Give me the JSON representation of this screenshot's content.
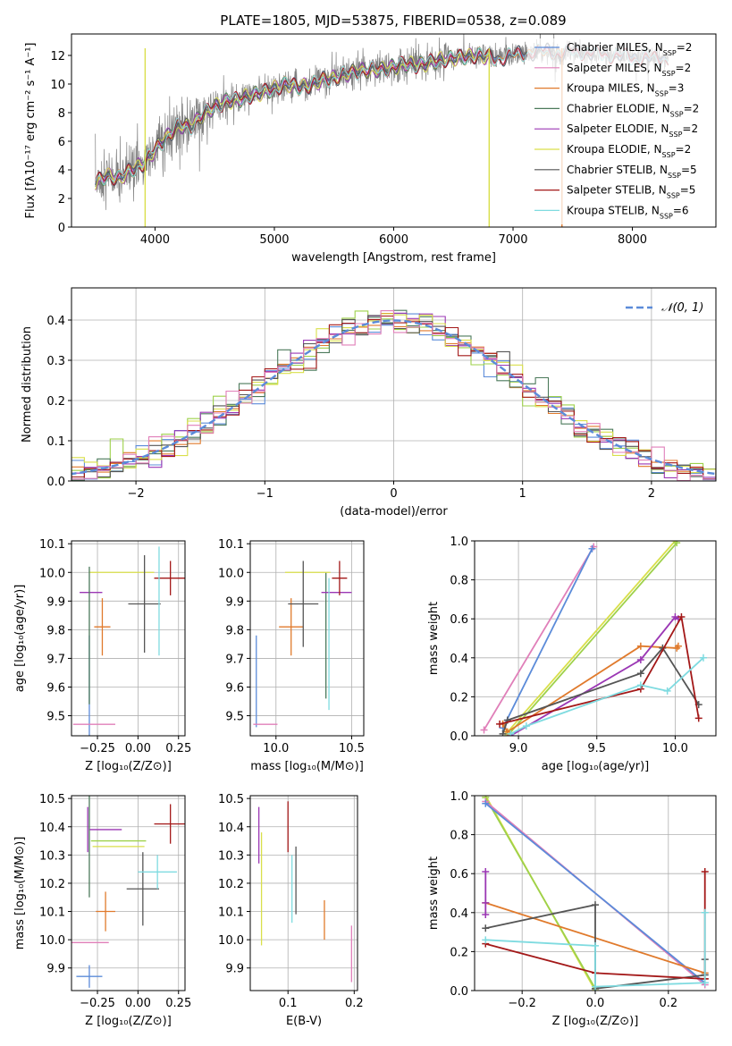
{
  "colors": {
    "c0": "#5b8bd9",
    "c1": "#e07a2c",
    "c2": "#9ed14a",
    "c3": "#4c7a5b",
    "c4": "#9b37b4",
    "c5": "#d9df4a",
    "c6": "#555555",
    "c7": "#a31818",
    "c8": "#7fdbe0",
    "c9": "#e07fb9"
  },
  "chart_data": [
    {
      "type": "line",
      "title": "PLATE=1805, MJD=53875, FIBERID=0538, z=0.089",
      "xlabel": "wavelength [Angstrom, rest frame]",
      "ylabel": "Flux [fλ10⁻¹⁷ erg cm⁻² s⁻¹ A⁻¹]",
      "xlim": [
        3300,
        8700
      ],
      "ylim": [
        0,
        13.5
      ],
      "xticks": [
        4000,
        5000,
        6000,
        7000,
        8000
      ],
      "yticks": [
        0,
        2,
        4,
        6,
        8,
        10,
        12
      ],
      "spectrum_knots": {
        "x": [
          3500,
          3600,
          3700,
          3800,
          3900,
          4000,
          4100,
          4200,
          4300,
          4400,
          4500,
          4600,
          4700,
          4800,
          4900,
          5000,
          5100,
          5200,
          5300,
          5400,
          5500,
          5600,
          5700,
          5800,
          5900,
          6000,
          6100,
          6200,
          6300,
          6400,
          6500,
          6600,
          6700,
          6800,
          6900,
          7000,
          7100,
          7200,
          7300,
          7400,
          7500,
          7600,
          7700,
          7800,
          7900,
          8000,
          8100,
          8200,
          8300,
          8400
        ],
        "y": [
          3.1,
          3.6,
          3.4,
          4.0,
          4.4,
          5.4,
          6.3,
          7.1,
          7.0,
          7.9,
          8.4,
          8.8,
          8.9,
          9.2,
          9.4,
          9.7,
          10.0,
          9.8,
          9.9,
          10.3,
          10.4,
          10.7,
          10.9,
          11.0,
          11.0,
          11.2,
          11.4,
          11.3,
          11.5,
          11.7,
          11.8,
          11.9,
          12.0,
          11.9,
          11.8,
          12.0,
          12.2,
          12.2,
          12.3,
          12.1,
          12.3,
          12.2,
          12.1,
          12.0,
          12.0,
          11.8,
          11.9,
          11.7,
          11.8,
          11.6
        ]
      },
      "series": [
        {
          "name": "Chabrier MILES, N_SSP=2",
          "color_key": "c0",
          "x_end": 8300
        },
        {
          "name": "Salpeter MILES, N_SSP=2",
          "color_key": "c9",
          "x_end": 8300
        },
        {
          "name": "Kroupa MILES, N_SSP=3",
          "color_key": "c1",
          "x_end": 7410
        },
        {
          "name": "Chabrier ELODIE, N_SSP=2",
          "color_key": "c3",
          "x_end": 6800
        },
        {
          "name": "Salpeter ELODIE, N_SSP=2",
          "color_key": "c4",
          "x_end": 6800
        },
        {
          "name": "Kroupa ELODIE, N_SSP=2",
          "color_key": "c5",
          "x_end": 6800
        },
        {
          "name": "Chabrier STELIB, N_SSP=5",
          "color_key": "c6",
          "x_end": 8300
        },
        {
          "name": "Salpeter STELIB, N_SSP=5",
          "color_key": "c7",
          "x_end": 8300
        },
        {
          "name": "Kroupa STELIB, N_SSP=6",
          "color_key": "c8",
          "x_end": 8300
        }
      ]
    },
    {
      "type": "histogram",
      "xlabel": "(data-model)/error",
      "ylabel": "Normed distribution",
      "xlim": [
        -2.5,
        2.5
      ],
      "ylim": [
        0,
        0.48
      ],
      "xticks": [
        -2,
        -1,
        0,
        1,
        2
      ],
      "yticks": [
        0.0,
        0.1,
        0.2,
        0.3,
        0.4
      ],
      "legend": "𝒩(0, 1)",
      "legend_position": "top-right",
      "bin_width": 0.1,
      "n_series": 9,
      "reference_curve": "N(0,1) gaussian, dashed"
    },
    {
      "type": "errorbar",
      "xlabel": "Z [log₁₀(Z/Z⊙)]",
      "ylabel": "age  [log₁₀(age/yr)]",
      "xlim": [
        -0.41,
        0.29
      ],
      "ylim": [
        9.43,
        10.11
      ],
      "xticks": [
        -0.25,
        0.0,
        0.25
      ],
      "xticklabels": [
        "−0.25",
        "0.00",
        "0.25"
      ],
      "yticks": [
        9.5,
        9.6,
        9.7,
        9.8,
        9.9,
        10.0,
        10.1
      ],
      "points": [
        {
          "color_key": "c0",
          "x": -0.3,
          "xerr": 0.0,
          "y": 9.47,
          "yerr": 0.31
        },
        {
          "color_key": "c9",
          "x": -0.27,
          "xerr": 0.13,
          "y": 9.47,
          "yerr": 0.0
        },
        {
          "color_key": "c1",
          "x": -0.22,
          "xerr": 0.05,
          "y": 9.81,
          "yerr": 0.1
        },
        {
          "color_key": "c4",
          "x": -0.29,
          "xerr": 0.07,
          "y": 9.93,
          "yerr": 0.0
        },
        {
          "color_key": "c5",
          "x": -0.1,
          "xerr": 0.2,
          "y": 10.0,
          "yerr": 0.0
        },
        {
          "color_key": "c3",
          "x": -0.3,
          "xerr": 0.0,
          "y": 9.78,
          "yerr": 0.24
        },
        {
          "color_key": "c6",
          "x": 0.04,
          "xerr": 0.1,
          "y": 9.89,
          "yerr": 0.17
        },
        {
          "color_key": "c7",
          "x": 0.2,
          "xerr": 0.1,
          "y": 9.98,
          "yerr": 0.06
        },
        {
          "color_key": "c8",
          "x": 0.13,
          "xerr": 0.0,
          "y": 9.9,
          "yerr": 0.19
        }
      ]
    },
    {
      "type": "errorbar",
      "xlabel": "mass [log₁₀(M/M⊙)]",
      "xlim": [
        9.83,
        10.58
      ],
      "ylim": [
        9.43,
        10.11
      ],
      "xticks": [
        10.0,
        10.5
      ],
      "yticks": [
        9.5,
        9.6,
        9.7,
        9.8,
        9.9,
        10.0,
        10.1
      ],
      "points": [
        {
          "color_key": "c0",
          "x": 9.87,
          "xerr": 0.0,
          "y": 9.62,
          "yerr": 0.16
        },
        {
          "color_key": "c9",
          "x": 9.93,
          "xerr": 0.08,
          "y": 9.47,
          "yerr": 0.0
        },
        {
          "color_key": "c1",
          "x": 10.1,
          "xerr": 0.08,
          "y": 9.81,
          "yerr": 0.1
        },
        {
          "color_key": "c3",
          "x": 10.33,
          "xerr": 0.0,
          "y": 9.78,
          "yerr": 0.22
        },
        {
          "color_key": "c4",
          "x": 10.4,
          "xerr": 0.1,
          "y": 9.93,
          "yerr": 0.0
        },
        {
          "color_key": "c5",
          "x": 10.21,
          "xerr": 0.15,
          "y": 10.0,
          "yerr": 0.0
        },
        {
          "color_key": "c6",
          "x": 10.18,
          "xerr": 0.1,
          "y": 9.89,
          "yerr": 0.15
        },
        {
          "color_key": "c7",
          "x": 10.42,
          "xerr": 0.05,
          "y": 9.98,
          "yerr": 0.06
        },
        {
          "color_key": "c8",
          "x": 10.35,
          "xerr": 0.0,
          "y": 9.75,
          "yerr": 0.23
        }
      ]
    },
    {
      "type": "line",
      "xlabel": "age  [log₁₀(age/yr)]",
      "ylabel": "mass weight",
      "xlim": [
        8.72,
        10.26
      ],
      "ylim": [
        0,
        1.0
      ],
      "xticks": [
        9.0,
        9.5,
        10.0
      ],
      "yticks": [
        0.0,
        0.2,
        0.4,
        0.6,
        0.8,
        1.0
      ],
      "series": [
        {
          "color_key": "c9",
          "x": [
            8.78,
            9.48
          ],
          "y": [
            0.03,
            0.97
          ]
        },
        {
          "color_key": "c0",
          "x": [
            8.9,
            9.47
          ],
          "y": [
            0.04,
            0.96
          ]
        },
        {
          "color_key": "c5",
          "x": [
            8.92,
            10.0
          ],
          "y": [
            0.01,
            1.0
          ]
        },
        {
          "color_key": "c2",
          "x": [
            8.93,
            10.01
          ],
          "y": [
            0.0,
            0.99
          ]
        },
        {
          "color_key": "c1",
          "x": [
            8.9,
            8.93,
            9.78,
            10.01,
            10.02
          ],
          "y": [
            0.06,
            0.02,
            0.46,
            0.45,
            0.46
          ]
        },
        {
          "color_key": "c4",
          "x": [
            8.95,
            9.78,
            10.0,
            10.02
          ],
          "y": [
            0.0,
            0.39,
            0.61,
            0.6
          ]
        },
        {
          "color_key": "c6",
          "x": [
            8.9,
            8.93,
            9.78,
            9.92,
            10.15
          ],
          "y": [
            0.01,
            0.08,
            0.32,
            0.45,
            0.16
          ]
        },
        {
          "color_key": "c7",
          "x": [
            8.88,
            9.78,
            10.04,
            10.15
          ],
          "y": [
            0.06,
            0.24,
            0.61,
            0.09
          ]
        },
        {
          "color_key": "c8",
          "x": [
            8.95,
            9.05,
            9.78,
            9.95,
            10.18
          ],
          "y": [
            0.01,
            0.05,
            0.26,
            0.23,
            0.4
          ]
        }
      ]
    },
    {
      "type": "errorbar",
      "xlabel": "Z [log₁₀(Z/Z⊙)]",
      "ylabel": "mass [log₁₀(M/M⊙)]",
      "xlim": [
        -0.41,
        0.29
      ],
      "ylim": [
        9.82,
        10.51
      ],
      "xticks": [
        -0.25,
        0.0,
        0.25
      ],
      "xticklabels": [
        "−0.25",
        "0.00",
        "0.25"
      ],
      "yticks": [
        9.9,
        10.0,
        10.1,
        10.2,
        10.3,
        10.4,
        10.5
      ],
      "points": [
        {
          "color_key": "c0",
          "x": -0.3,
          "xerr": 0.08,
          "y": 9.87,
          "yerr": 0.04
        },
        {
          "color_key": "c9",
          "x": -0.3,
          "xerr": 0.12,
          "y": 9.99,
          "yerr": 0.0
        },
        {
          "color_key": "c1",
          "x": -0.2,
          "xerr": 0.06,
          "y": 10.1,
          "yerr": 0.07
        },
        {
          "color_key": "c3",
          "x": -0.3,
          "xerr": 0.0,
          "y": 10.33,
          "yerr": 0.18
        },
        {
          "color_key": "c4",
          "x": -0.31,
          "xerr": 0.0,
          "y": 10.39,
          "yerr": 0.08
        },
        {
          "color_key": "c4",
          "x": -0.2,
          "xerr": 0.1,
          "y": 10.39,
          "yerr": 0.0
        },
        {
          "color_key": "c2",
          "x": -0.12,
          "xerr": 0.17,
          "y": 10.35,
          "yerr": 0.0
        },
        {
          "color_key": "c5",
          "x": -0.12,
          "xerr": 0.16,
          "y": 10.33,
          "yerr": 0.0
        },
        {
          "color_key": "c6",
          "x": 0.03,
          "xerr": 0.1,
          "y": 10.18,
          "yerr": 0.13
        },
        {
          "color_key": "c7",
          "x": 0.2,
          "xerr": 0.1,
          "y": 10.41,
          "yerr": 0.07
        },
        {
          "color_key": "c8",
          "x": 0.12,
          "xerr": 0.12,
          "y": 10.24,
          "yerr": 0.06
        }
      ]
    },
    {
      "type": "errorbar",
      "xlabel": "E(B-V)",
      "xlim": [
        0.043,
        0.205
      ],
      "ylim": [
        9.82,
        10.51
      ],
      "xticks": [
        0.1,
        0.2
      ],
      "yticks": [
        9.9,
        10.0,
        10.1,
        10.2,
        10.3,
        10.4,
        10.5
      ],
      "points": [
        {
          "color_key": "c4",
          "x": 0.056,
          "xerr": 0.0,
          "y": 10.37,
          "yerr": 0.1
        },
        {
          "color_key": "c5",
          "x": 0.06,
          "xerr": 0.0,
          "y": 10.18,
          "yerr": 0.2
        },
        {
          "color_key": "c7",
          "x": 0.1,
          "xerr": 0.0,
          "y": 10.4,
          "yerr": 0.09
        },
        {
          "color_key": "c8",
          "x": 0.106,
          "xerr": 0.0,
          "y": 10.18,
          "yerr": 0.12
        },
        {
          "color_key": "c6",
          "x": 0.112,
          "xerr": 0.0,
          "y": 10.21,
          "yerr": 0.12
        },
        {
          "color_key": "c1",
          "x": 0.155,
          "xerr": 0.0,
          "y": 10.07,
          "yerr": 0.07
        },
        {
          "color_key": "c9",
          "x": 0.196,
          "xerr": 0.0,
          "y": 9.95,
          "yerr": 0.1
        }
      ]
    },
    {
      "type": "line",
      "xlabel": "Z [log₁₀(Z/Z⊙)]",
      "ylabel": "mass weight",
      "xlim": [
        -0.33,
        0.33
      ],
      "ylim": [
        0,
        1.0
      ],
      "xticks": [
        -0.2,
        0.0,
        0.2
      ],
      "xticklabels": [
        "−0.2",
        "0.0",
        "0.2"
      ],
      "yticks": [
        0.0,
        0.2,
        0.4,
        0.6,
        0.8,
        1.0
      ],
      "series": [
        {
          "color_key": "c5",
          "x": [
            -0.3,
            0.0
          ],
          "y": [
            1.0,
            0.0
          ]
        },
        {
          "color_key": "c2",
          "x": [
            -0.3,
            0.0
          ],
          "y": [
            0.99,
            0.01
          ]
        },
        {
          "color_key": "c9",
          "x": [
            -0.3,
            0.3
          ],
          "y": [
            0.97,
            0.03
          ]
        },
        {
          "color_key": "c0",
          "x": [
            -0.3,
            0.3
          ],
          "y": [
            0.96,
            0.04
          ]
        },
        {
          "color_key": "c1",
          "x": [
            -0.3,
            0.3
          ],
          "y": [
            0.45,
            0.09
          ]
        },
        {
          "color_key": "c4",
          "x": [
            -0.3,
            -0.3,
            -0.3
          ],
          "y": [
            0.61,
            0.45,
            0.39
          ]
        },
        {
          "color_key": "c6",
          "x": [
            -0.3,
            0.0,
            0.0,
            0.3,
            0.3
          ],
          "y": [
            0.32,
            0.44,
            0.01,
            0.08,
            0.16
          ]
        },
        {
          "color_key": "c7",
          "x": [
            -0.3,
            0.0,
            0.3,
            0.3,
            0.3
          ],
          "y": [
            0.24,
            0.09,
            0.06,
            0.61,
            0.06
          ]
        },
        {
          "color_key": "c8",
          "x": [
            -0.3,
            0.0,
            0.0,
            0.3,
            0.3
          ],
          "y": [
            0.26,
            0.23,
            0.02,
            0.04,
            0.4
          ]
        }
      ]
    }
  ]
}
